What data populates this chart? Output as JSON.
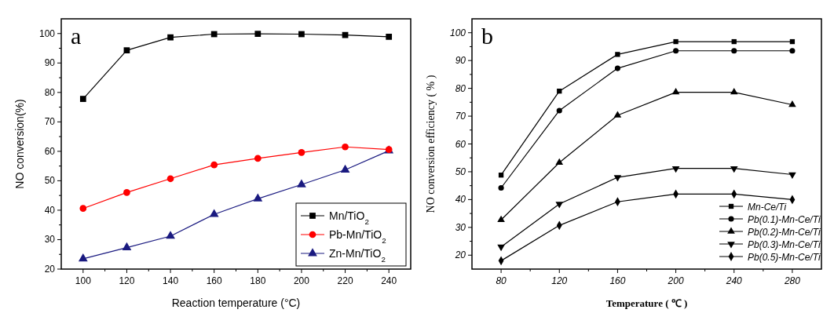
{
  "chart_data": [
    {
      "type": "line",
      "title": "a",
      "xlabel": "Reaction temperature (°C)",
      "ylabel": "NO conversion(%)",
      "x": [
        100,
        120,
        140,
        160,
        180,
        200,
        220,
        240
      ],
      "xlim": [
        90,
        250
      ],
      "ylim": [
        20,
        105
      ],
      "xticks": [
        100,
        120,
        140,
        160,
        180,
        200,
        220,
        240
      ],
      "yticks": [
        20,
        30,
        40,
        50,
        60,
        70,
        80,
        90,
        100
      ],
      "legend": "bottom right",
      "grid": false,
      "series": [
        {
          "name": "Mn/TiO$_{2}$",
          "color": "#000000",
          "marker": "square",
          "values": [
            77.8,
            94.3,
            98.7,
            99.8,
            99.9,
            99.8,
            99.5,
            98.9
          ]
        },
        {
          "name": "Pb-Mn/TiO$_{2}$",
          "color": "#ff0000",
          "marker": "circle",
          "values": [
            40.6,
            46,
            50.7,
            55.4,
            57.6,
            59.6,
            61.5,
            60.6
          ]
        },
        {
          "name": "Zn-Mn/TiO$_{2}$",
          "color": "#1a1a80",
          "marker": "triangle",
          "values": [
            23.5,
            27.3,
            31.2,
            38.6,
            43.9,
            48.7,
            53.7,
            60.2
          ]
        }
      ]
    },
    {
      "type": "line",
      "title": "b",
      "xlabel": "Temperature ( ℃ )",
      "ylabel": "NO conversion efficiency ( % )",
      "x": [
        80,
        120,
        160,
        200,
        240,
        280
      ],
      "xlim": [
        60,
        300
      ],
      "ylim": [
        15,
        105
      ],
      "xticks": [
        80,
        120,
        160,
        200,
        240,
        280
      ],
      "yticks": [
        20,
        30,
        40,
        50,
        60,
        70,
        80,
        90,
        100
      ],
      "legend": "bottom right",
      "grid": false,
      "series": [
        {
          "name": "Mn-Ce/Ti",
          "color": "#000000",
          "marker": "square",
          "values": [
            48.8,
            79,
            92.2,
            96.8,
            96.8,
            96.8
          ]
        },
        {
          "name": "Pb(0.1)-Mn-Ce/Ti",
          "color": "#000000",
          "marker": "circle",
          "values": [
            44.2,
            72,
            87.2,
            93.5,
            93.5,
            93.5
          ]
        },
        {
          "name": "Pb(0.2)-Mn-Ce/Ti",
          "color": "#000000",
          "marker": "triangle",
          "values": [
            32.7,
            53.3,
            70.3,
            78.6,
            78.6,
            74.1
          ]
        },
        {
          "name": "Pb(0.3)-Mn-Ce/Ti",
          "color": "#000000",
          "marker": "triangle-down",
          "values": [
            23,
            38.4,
            48,
            51.2,
            51.2,
            49
          ]
        },
        {
          "name": "Pb(0.5)-Mn-Ce/Ti",
          "color": "#000000",
          "marker": "diamond",
          "values": [
            18,
            30.7,
            39.2,
            42,
            42,
            40
          ]
        }
      ]
    }
  ]
}
